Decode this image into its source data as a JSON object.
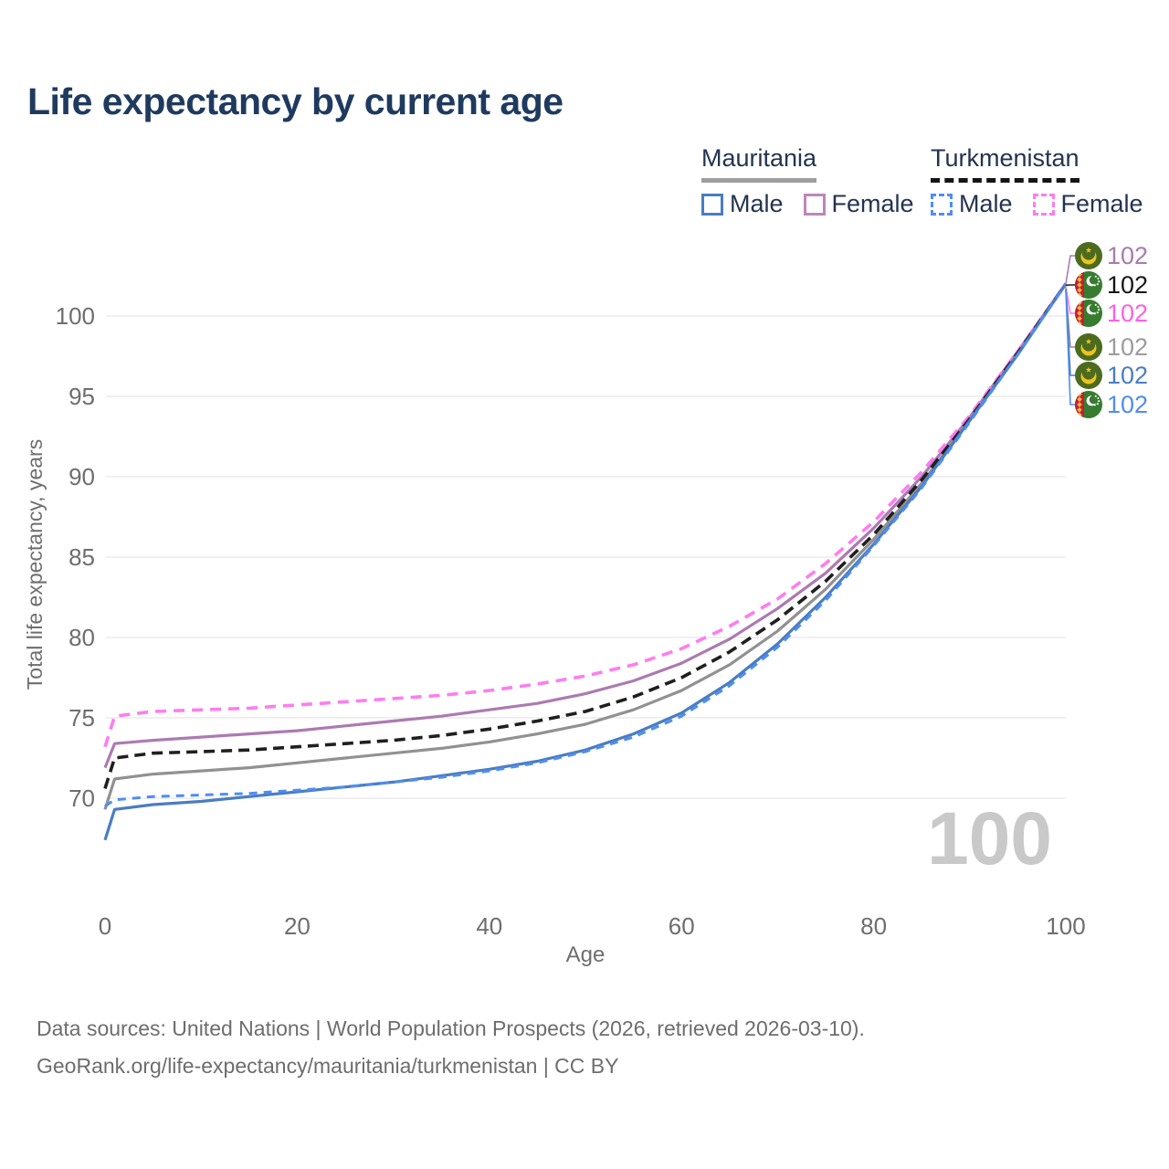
{
  "title": "Life expectancy by current age",
  "legend": {
    "groups": [
      {
        "name": "Mauritania",
        "underline": "solid",
        "underline_color": "#9e9e9e",
        "items": [
          {
            "label": "Male",
            "color": "#4a7dc1",
            "dashed": false
          },
          {
            "label": "Female",
            "color": "#bd85bc",
            "dashed": false
          }
        ]
      },
      {
        "name": "Turkmenistan",
        "underline": "dashed",
        "underline_color": "#151515",
        "items": [
          {
            "label": "Male",
            "color": "#4f8df3",
            "dashed": true
          },
          {
            "label": "Female",
            "color": "#ff7cf0",
            "dashed": true
          }
        ]
      }
    ]
  },
  "chart_data": {
    "type": "line",
    "title": "Life expectancy by current age",
    "xlabel": "Age",
    "ylabel": "Total life expectancy, years",
    "xlim": [
      0,
      100
    ],
    "ylim": [
      67,
      103
    ],
    "x_ticks": [
      0,
      20,
      40,
      60,
      80,
      100
    ],
    "y_ticks": [
      70,
      75,
      80,
      85,
      90,
      95,
      100
    ],
    "grid": "horizontal",
    "watermark_age": "100",
    "x": [
      0,
      1,
      5,
      10,
      15,
      20,
      25,
      30,
      35,
      40,
      45,
      50,
      55,
      60,
      65,
      70,
      75,
      80,
      85,
      90,
      95,
      100
    ],
    "series": [
      {
        "name": "Mauritania Female",
        "country": "Mauritania",
        "sex": "Female",
        "flag": "mauritania",
        "color": "#ac7ab2",
        "label_color": "#a87bae",
        "dashed": false,
        "width": 3.2,
        "dash": "",
        "end_label": "102",
        "end_row": 0,
        "values": [
          71.9,
          73.4,
          73.6,
          73.8,
          74.0,
          74.2,
          74.5,
          74.8,
          75.1,
          75.5,
          75.9,
          76.5,
          77.3,
          78.4,
          79.9,
          81.8,
          84.0,
          86.8,
          90.0,
          93.7,
          97.8,
          102
        ]
      },
      {
        "name": "Turkmenistan Female",
        "country": "Turkmenistan",
        "sex": "Female",
        "flag": "turkmenistan",
        "color": "#ff7cf0",
        "label_color": "#ff5fe0",
        "dashed": true,
        "width": 3.6,
        "dash": "12 8",
        "end_label": "102",
        "end_row": 2,
        "values": [
          73.2,
          75.1,
          75.4,
          75.5,
          75.6,
          75.8,
          76.0,
          76.2,
          76.4,
          76.7,
          77.1,
          77.6,
          78.3,
          79.3,
          80.7,
          82.4,
          84.6,
          87.2,
          90.3,
          93.8,
          97.8,
          102
        ]
      },
      {
        "name": "Mauritania (both sexes)",
        "country": "Mauritania",
        "sex": "All",
        "flag": "mauritania",
        "color": "#919191",
        "label_color": "#9c9c9c",
        "dashed": false,
        "width": 3.2,
        "dash": "",
        "end_label": "102",
        "end_row": 3,
        "values": [
          69.3,
          71.2,
          71.5,
          71.7,
          71.9,
          72.2,
          72.5,
          72.8,
          73.1,
          73.5,
          74.0,
          74.6,
          75.5,
          76.7,
          78.3,
          80.4,
          83.0,
          86.1,
          89.6,
          93.5,
          97.7,
          102
        ]
      },
      {
        "name": "Turkmenistan (both sexes)",
        "country": "Turkmenistan",
        "sex": "All",
        "flag": "turkmenistan",
        "color": "#1f1f1f",
        "label_color": "#151515",
        "dashed": true,
        "width": 3.6,
        "dash": "12 7",
        "end_label": "102",
        "end_row": 1,
        "values": [
          70.6,
          72.5,
          72.8,
          72.9,
          73.0,
          73.2,
          73.4,
          73.6,
          73.9,
          74.3,
          74.8,
          75.4,
          76.3,
          77.5,
          79.1,
          81.1,
          83.5,
          86.4,
          89.8,
          93.6,
          97.7,
          102
        ]
      },
      {
        "name": "Mauritania Male",
        "country": "Mauritania",
        "sex": "Male",
        "flag": "mauritania",
        "color": "#4a7dc1",
        "label_color": "#4a7dc1",
        "dashed": false,
        "width": 3.2,
        "dash": "",
        "end_label": "102",
        "end_row": 4,
        "values": [
          67.4,
          69.3,
          69.6,
          69.8,
          70.1,
          70.4,
          70.7,
          71.0,
          71.4,
          71.8,
          72.3,
          73.0,
          74.0,
          75.3,
          77.2,
          79.6,
          82.5,
          85.8,
          89.4,
          93.5,
          97.6,
          102
        ]
      },
      {
        "name": "Turkmenistan Male",
        "country": "Turkmenistan",
        "sex": "Male",
        "flag": "turkmenistan",
        "color": "#4f8df3",
        "label_color": "#4f8df3",
        "dashed": true,
        "width": 3.0,
        "dash": "9 7",
        "end_label": "102",
        "end_row": 5,
        "values": [
          69.5,
          69.9,
          70.1,
          70.2,
          70.3,
          70.5,
          70.7,
          71.0,
          71.3,
          71.7,
          72.2,
          72.9,
          73.8,
          75.1,
          77.0,
          79.4,
          82.3,
          85.7,
          89.3,
          93.4,
          97.6,
          102
        ]
      }
    ]
  },
  "colors": {
    "grid": "#e8e8e8",
    "axis_text": "#6e6e6e",
    "title_text": "#1f3a5f",
    "watermark": "#c9c9c9",
    "background": "#ffffff",
    "mauritania_flag_green": "#4c6b1f",
    "mauritania_flag_gold": "#eec31e",
    "turkmenistan_flag_green": "#377c2f",
    "turkmenistan_flag_red": "#c41f33",
    "turkmenistan_flag_gold": "#efb43f"
  },
  "source": {
    "line1": "Data sources: United Nations | World Population Prospects (2026, retrieved 2026-03-10).",
    "line2": "GeoRank.org/life-expectancy/mauritania/turkmenistan | CC BY"
  }
}
